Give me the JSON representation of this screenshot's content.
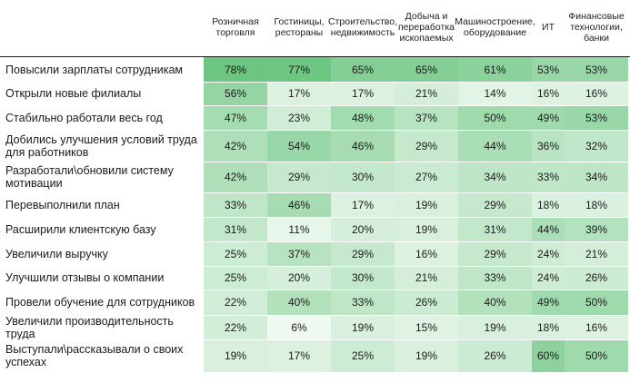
{
  "columns": [
    "Розничная\nторговля",
    "Гостиницы,\nрестораны",
    "Строительство,\nнедвижимость",
    "Добыча и\nпереработка\nископаемых",
    "Машиностроение,\nоборудование",
    "ИТ",
    "Финансовые\nтехнологии,\nбанки"
  ],
  "rows": [
    {
      "label": "Повысили зарплаты сотрудникам",
      "values": [
        "78%",
        "77%",
        "65%",
        "65%",
        "61%",
        "53%",
        "53%"
      ]
    },
    {
      "label": "Открыли новые филиалы",
      "values": [
        "56%",
        "17%",
        "17%",
        "21%",
        "14%",
        "16%",
        "16%"
      ]
    },
    {
      "label": "Стабильно работали весь год",
      "values": [
        "47%",
        "23%",
        "48%",
        "37%",
        "50%",
        "49%",
        "53%"
      ]
    },
    {
      "label": "Добились улучшения условий труда для работников",
      "values": [
        "42%",
        "54%",
        "46%",
        "29%",
        "44%",
        "36%",
        "32%"
      ]
    },
    {
      "label": "Разработали\\обновили систему мотивации",
      "values": [
        "42%",
        "29%",
        "30%",
        "27%",
        "34%",
        "33%",
        "34%"
      ]
    },
    {
      "label": "Перевыполнили план",
      "values": [
        "33%",
        "46%",
        "17%",
        "19%",
        "29%",
        "18%",
        "18%"
      ]
    },
    {
      "label": "Расширили клиентскую базу",
      "values": [
        "31%",
        "11%",
        "20%",
        "19%",
        "31%",
        "44%",
        "39%"
      ]
    },
    {
      "label": "Увеличили выручку",
      "values": [
        "25%",
        "37%",
        "29%",
        "16%",
        "29%",
        "24%",
        "21%"
      ]
    },
    {
      "label": "Улучшили отзывы о компании",
      "values": [
        "25%",
        "20%",
        "30%",
        "21%",
        "33%",
        "24%",
        "26%"
      ]
    },
    {
      "label": "Провели обучение для сотрудников",
      "values": [
        "22%",
        "40%",
        "33%",
        "26%",
        "40%",
        "49%",
        "50%"
      ]
    },
    {
      "label": "Увеличили производительность труда",
      "values": [
        "22%",
        "6%",
        "19%",
        "15%",
        "19%",
        "18%",
        "16%"
      ]
    },
    {
      "label": "Выступали\\рассказывали о своих успехах",
      "values": [
        "19%",
        "17%",
        "25%",
        "19%",
        "26%",
        "60%",
        "50%"
      ]
    }
  ]
}
